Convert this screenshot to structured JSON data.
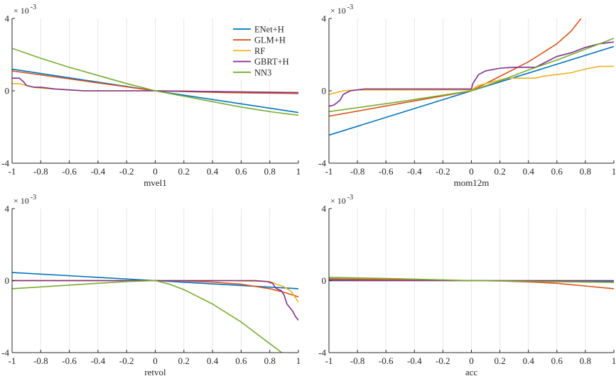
{
  "chart_data": [
    {
      "type": "line",
      "xlabel": "mvel1",
      "xlim": [
        -1,
        1
      ],
      "ylim": [
        -4,
        4
      ],
      "y_exponent": "-3",
      "xticks": [
        "-1",
        "-0.8",
        "-0.6",
        "-0.4",
        "-0.2",
        "0",
        "0.2",
        "0.4",
        "0.6",
        "0.8",
        "1"
      ],
      "yticks": [
        "-4",
        "0",
        "4"
      ],
      "grid": "vertical",
      "legend": {
        "placement": "top-right",
        "entries": [
          "ENet+H",
          "GLM+H",
          "RF",
          "GBRT+H",
          "NN3"
        ]
      },
      "series": [
        {
          "name": "ENet+H",
          "x": [
            -1,
            0,
            1
          ],
          "y": [
            1.2,
            0,
            -1.2
          ]
        },
        {
          "name": "GLM+H",
          "x": [
            -1,
            -0.5,
            0,
            0.5,
            1
          ],
          "y": [
            1.1,
            0.55,
            0,
            -0.1,
            -0.15
          ]
        },
        {
          "name": "RF",
          "x": [
            -1,
            -0.95,
            -0.9,
            -0.85,
            -0.8,
            -0.7,
            -0.5,
            -0.2,
            0,
            0.5,
            1
          ],
          "y": [
            0.4,
            0.4,
            0.3,
            0.2,
            0.15,
            0.1,
            0,
            0,
            0,
            -0.05,
            -0.1
          ]
        },
        {
          "name": "GBRT+H",
          "x": [
            -1,
            -0.95,
            -0.92,
            -0.9,
            -0.85,
            -0.8,
            -0.7,
            -0.6,
            -0.5,
            -0.2,
            0,
            0.5,
            1
          ],
          "y": [
            0.7,
            0.7,
            0.5,
            0.3,
            0.2,
            0.2,
            0.1,
            0.05,
            0,
            0,
            0,
            -0.05,
            -0.1
          ]
        },
        {
          "name": "NN3",
          "x": [
            -1,
            -0.8,
            -0.6,
            -0.4,
            -0.2,
            0,
            0.2,
            0.4,
            0.6,
            0.8,
            1
          ],
          "y": [
            2.35,
            1.8,
            1.3,
            0.85,
            0.4,
            0,
            -0.3,
            -0.6,
            -0.9,
            -1.15,
            -1.35
          ]
        }
      ]
    },
    {
      "type": "line",
      "xlabel": "mom12m",
      "xlim": [
        -1,
        1
      ],
      "ylim": [
        -4,
        4
      ],
      "y_exponent": "-3",
      "xticks": [
        "-1",
        "-0.8",
        "-0.6",
        "-0.4",
        "-0.2",
        "0",
        "0.2",
        "0.4",
        "0.6",
        "0.8",
        "1"
      ],
      "yticks": [
        "-4",
        "0",
        "4"
      ],
      "grid": "vertical",
      "series": [
        {
          "name": "ENet+H",
          "x": [
            -1,
            0,
            1
          ],
          "y": [
            -2.45,
            0,
            2.45
          ]
        },
        {
          "name": "GLM+H",
          "x": [
            -1,
            -0.5,
            0,
            0.2,
            0.4,
            0.6,
            0.7,
            0.77
          ],
          "y": [
            -1.4,
            -0.7,
            0,
            0.8,
            1.6,
            2.6,
            3.3,
            4.0
          ]
        },
        {
          "name": "RF",
          "x": [
            -1,
            -0.95,
            -0.9,
            -0.8,
            -0.5,
            0,
            0.05,
            0.1,
            0.2,
            0.25,
            0.4,
            0.45,
            0.5,
            0.6,
            0.7,
            0.8,
            0.9,
            1
          ],
          "y": [
            -0.2,
            -0.1,
            0,
            0.05,
            0.05,
            0.05,
            0.3,
            0.4,
            0.6,
            0.7,
            0.7,
            0.7,
            0.8,
            0.9,
            1.0,
            1.2,
            1.35,
            1.35
          ]
        },
        {
          "name": "GBRT+H",
          "x": [
            -1,
            -0.97,
            -0.95,
            -0.92,
            -0.9,
            -0.85,
            -0.8,
            -0.75,
            -0.5,
            -0.2,
            0,
            0.01,
            0.05,
            0.1,
            0.2,
            0.3,
            0.45,
            0.5,
            0.55,
            0.6,
            0.7,
            0.8,
            0.9,
            1
          ],
          "y": [
            -0.85,
            -0.8,
            -0.7,
            -0.5,
            -0.2,
            0,
            0.05,
            0.1,
            0.1,
            0.1,
            0.1,
            0.4,
            0.9,
            1.1,
            1.25,
            1.3,
            1.3,
            1.5,
            1.7,
            1.9,
            2.1,
            2.4,
            2.6,
            2.7
          ]
        },
        {
          "name": "NN3",
          "x": [
            -1,
            -0.5,
            0,
            0.2,
            0.4,
            0.6,
            0.8,
            1
          ],
          "y": [
            -1.15,
            -0.6,
            0,
            0.55,
            1.15,
            1.7,
            2.3,
            2.9
          ]
        }
      ]
    },
    {
      "type": "line",
      "xlabel": "retvol",
      "xlim": [
        -1,
        1
      ],
      "ylim": [
        -4,
        4
      ],
      "y_exponent": "-3",
      "xticks": [
        "-1",
        "-0.8",
        "-0.6",
        "-0.4",
        "-0.2",
        "0",
        "0.2",
        "0.4",
        "0.6",
        "0.8",
        "1"
      ],
      "yticks": [
        "-4",
        "0",
        "4"
      ],
      "grid": "vertical",
      "series": [
        {
          "name": "ENet+H",
          "x": [
            -1,
            0,
            1
          ],
          "y": [
            0.45,
            0,
            -0.45
          ]
        },
        {
          "name": "GLM+H",
          "x": [
            -1,
            0,
            0.2,
            0.4,
            0.6,
            0.8,
            0.9,
            1
          ],
          "y": [
            0,
            0,
            -0.02,
            -0.08,
            -0.2,
            -0.45,
            -0.65,
            -0.9
          ]
        },
        {
          "name": "RF",
          "x": [
            -1,
            0,
            0.5,
            0.8,
            0.85,
            0.9,
            0.95,
            1
          ],
          "y": [
            0,
            0,
            0,
            -0.05,
            -0.2,
            -0.35,
            -0.6,
            -1.2
          ]
        },
        {
          "name": "GBRT+H",
          "x": [
            -1,
            0,
            0.7,
            0.78,
            0.82,
            0.84,
            0.86,
            0.88,
            0.9,
            0.92,
            0.94,
            0.96,
            0.98,
            1
          ],
          "y": [
            0,
            0,
            0,
            -0.05,
            -0.15,
            -0.4,
            -0.5,
            -0.55,
            -0.8,
            -1.3,
            -1.5,
            -1.7,
            -2.0,
            -2.2
          ]
        },
        {
          "name": "NN3",
          "x": [
            -1,
            -0.5,
            -0.2,
            0,
            0.1,
            0.2,
            0.3,
            0.4,
            0.5,
            0.6,
            0.7,
            0.8,
            0.9
          ],
          "y": [
            -0.45,
            -0.2,
            -0.05,
            0,
            -0.2,
            -0.5,
            -0.9,
            -1.3,
            -1.8,
            -2.3,
            -2.9,
            -3.5,
            -4.1
          ]
        }
      ]
    },
    {
      "type": "line",
      "xlabel": "acc",
      "xlim": [
        -1,
        1
      ],
      "ylim": [
        -4,
        4
      ],
      "y_exponent": "-3",
      "xticks": [
        "-1",
        "-0.8",
        "-0.6",
        "-0.4",
        "-0.2",
        "0",
        "0.2",
        "0.4",
        "0.6",
        "0.8",
        "1"
      ],
      "yticks": [
        "-4",
        "0",
        "4"
      ],
      "grid": "vertical",
      "series": [
        {
          "name": "ENet+H",
          "x": [
            -1,
            0,
            1
          ],
          "y": [
            0.05,
            0,
            -0.05
          ]
        },
        {
          "name": "GLM+H",
          "x": [
            -1,
            -0.5,
            0,
            0.2,
            0.4,
            0.6,
            0.8,
            1
          ],
          "y": [
            0.1,
            0.05,
            0,
            -0.02,
            -0.07,
            -0.15,
            -0.3,
            -0.45
          ]
        },
        {
          "name": "RF",
          "x": [
            -1,
            1
          ],
          "y": [
            0,
            0
          ]
        },
        {
          "name": "GBRT+H",
          "x": [
            -1,
            1
          ],
          "y": [
            0,
            0
          ]
        },
        {
          "name": "NN3",
          "x": [
            -1,
            -0.5,
            0,
            0.5,
            1
          ],
          "y": [
            0.18,
            0.1,
            0,
            -0.05,
            -0.1
          ]
        }
      ]
    }
  ],
  "colors": {
    "ENet+H": "#0072BD",
    "GLM+H": "#D95319",
    "RF": "#EDB120",
    "GBRT+H": "#7E2F8E",
    "NN3": "#77AC30",
    "axis": "#262626",
    "grid": "#E6E6E6"
  }
}
